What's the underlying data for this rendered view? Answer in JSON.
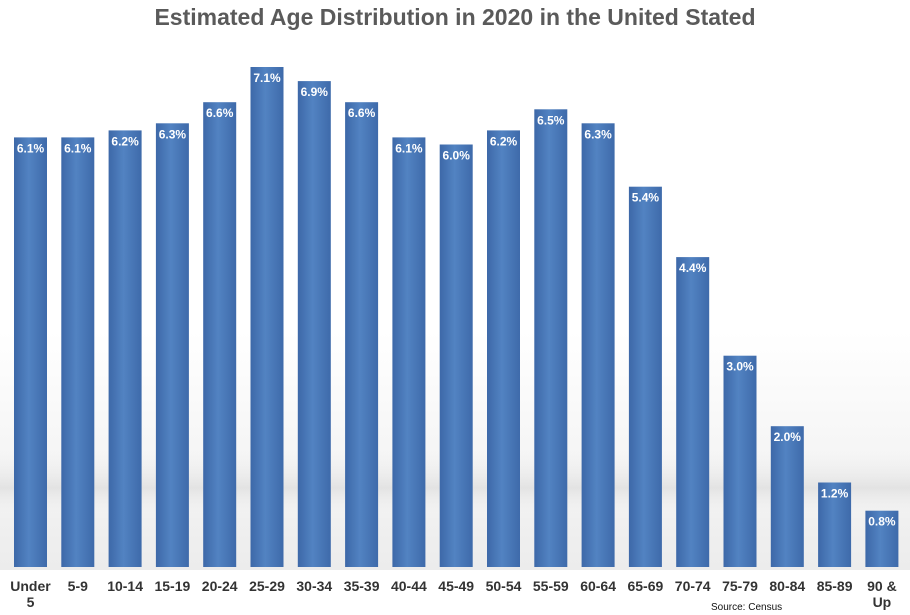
{
  "chart_data": {
    "type": "bar",
    "title": "Estimated Age Distribution in 2020 in the United Stated",
    "categories": [
      [
        "Under",
        "5"
      ],
      [
        "5-9"
      ],
      [
        "10-14"
      ],
      [
        "15-19"
      ],
      [
        "20-24"
      ],
      [
        "25-29"
      ],
      [
        "30-34"
      ],
      [
        "35-39"
      ],
      [
        "40-44"
      ],
      [
        "45-49"
      ],
      [
        "50-54"
      ],
      [
        "55-59"
      ],
      [
        "60-64"
      ],
      [
        "65-69"
      ],
      [
        "70-74"
      ],
      [
        "75-79"
      ],
      [
        "80-84"
      ],
      [
        "85-89"
      ],
      [
        "90 &",
        "Up"
      ]
    ],
    "values": [
      6.1,
      6.1,
      6.2,
      6.3,
      6.6,
      7.1,
      6.9,
      6.6,
      6.1,
      6.0,
      6.2,
      6.5,
      6.3,
      5.4,
      4.4,
      3.0,
      2.0,
      1.2,
      0.8
    ],
    "data_labels": [
      "6.1%",
      "6.1%",
      "6.2%",
      "6.3%",
      "6.6%",
      "7.1%",
      "6.9%",
      "6.6%",
      "6.1%",
      "6.0%",
      "6.2%",
      "6.5%",
      "6.3%",
      "5.4%",
      "4.4%",
      "3.0%",
      "2.0%",
      "1.2%",
      "0.8%"
    ],
    "unit": "%",
    "xlabel": "",
    "ylabel": "",
    "ylim": [
      0,
      7.1
    ],
    "grid": false,
    "legend": "none",
    "bar_color": "#4a78b8",
    "source": "Source: Census"
  }
}
